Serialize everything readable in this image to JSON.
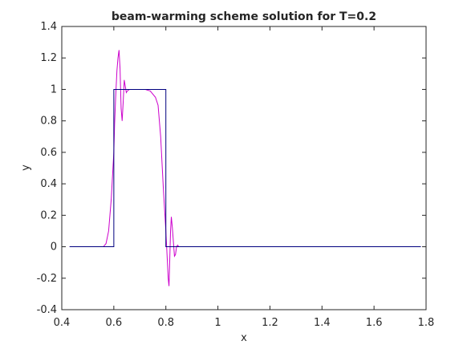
{
  "chart_data": {
    "type": "line",
    "title": "beam-warming scheme solution for T=0.2",
    "xlabel": "x",
    "ylabel": "y",
    "xlim": [
      0.4,
      1.8
    ],
    "ylim": [
      -0.4,
      1.4
    ],
    "xticks": [
      "0.4",
      "0.6",
      "0.8",
      "1",
      "1.2",
      "1.4",
      "1.6",
      "1.8"
    ],
    "yticks": [
      "-0.4",
      "-0.2",
      "0",
      "0.2",
      "0.4",
      "0.6",
      "0.8",
      "1",
      "1.2",
      "1.4"
    ],
    "grid": false,
    "legend": "none",
    "series": [
      {
        "color": "#cc00cc",
        "x": [
          0.43,
          0.56,
          0.57,
          0.58,
          0.59,
          0.6,
          0.603,
          0.607,
          0.612,
          0.616,
          0.62,
          0.624,
          0.628,
          0.632,
          0.636,
          0.64,
          0.644,
          0.648,
          0.652,
          0.66,
          0.68,
          0.7,
          0.72,
          0.74,
          0.76,
          0.77,
          0.78,
          0.79,
          0.8,
          0.803,
          0.806,
          0.809,
          0.812,
          0.815,
          0.818,
          0.821,
          0.825,
          0.829,
          0.833,
          0.837,
          0.841,
          0.845,
          0.85,
          0.86,
          1.78
        ],
        "y": [
          0.0,
          0.0,
          0.02,
          0.1,
          0.3,
          0.6,
          0.78,
          0.95,
          1.12,
          1.2,
          1.25,
          1.13,
          0.88,
          0.8,
          0.92,
          1.06,
          1.02,
          0.98,
          0.99,
          1.0,
          1.0,
          1.0,
          1.0,
          0.99,
          0.95,
          0.9,
          0.7,
          0.38,
          0.1,
          0.0,
          -0.1,
          -0.2,
          -0.25,
          -0.08,
          0.1,
          0.19,
          0.12,
          0.03,
          -0.06,
          -0.05,
          0.0,
          0.01,
          0.0,
          0.0,
          0.0
        ]
      },
      {
        "color": "#00007f",
        "x": [
          0.43,
          0.6,
          0.6,
          0.8,
          0.8,
          1.78
        ],
        "y": [
          0.0,
          0.0,
          1.0,
          1.0,
          0.0,
          0.0
        ]
      }
    ]
  }
}
